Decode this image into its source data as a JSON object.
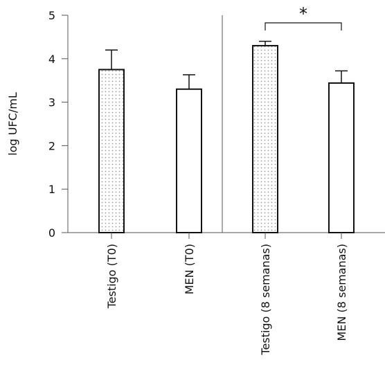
{
  "chart_data": {
    "type": "bar",
    "ylabel": "log UFC/mL",
    "ylim": [
      0,
      5
    ],
    "yticks": [
      "0",
      "1",
      "2",
      "3",
      "4",
      "5"
    ],
    "categories": [
      "Testigo (T0)",
      "MEN (T0)",
      "Testigo (8 semanas)",
      "MEN (8 semanas)"
    ],
    "values": [
      3.75,
      3.3,
      4.3,
      3.44
    ],
    "errors": [
      0.45,
      0.33,
      0.1,
      0.28
    ],
    "fills": [
      "dotted",
      "white",
      "dotted",
      "white"
    ],
    "grid": false,
    "legend": "none",
    "significance": {
      "from": 2,
      "to": 3,
      "label": "*"
    }
  }
}
